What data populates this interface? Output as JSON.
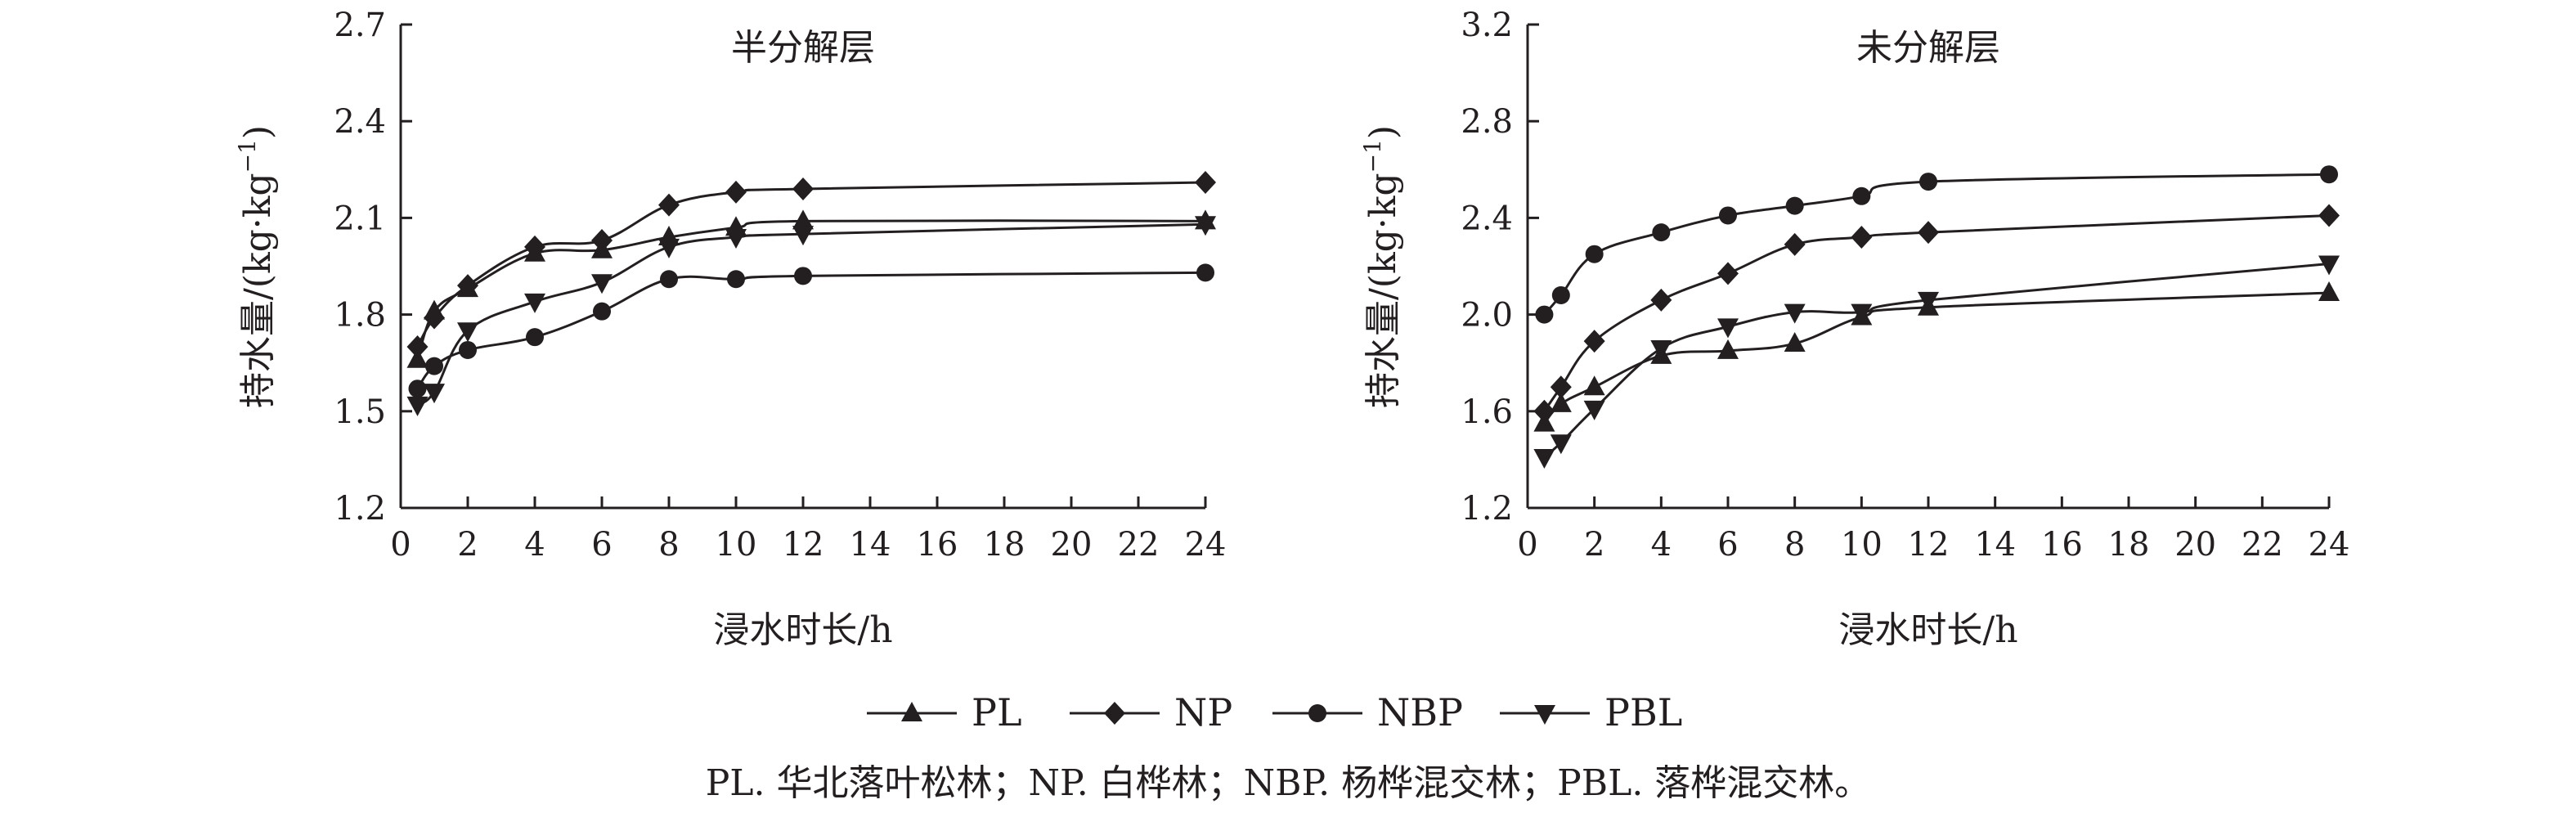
{
  "charts": [
    {
      "title": "半分解层",
      "xlabel": "浸水时长/h",
      "ylabel_main": "持水量/(kg·kg",
      "ylabel_sup": "−1",
      "ylabel_end": ")",
      "ylim": [
        1.2,
        2.7
      ],
      "yticks": [
        "1.2",
        "1.5",
        "1.8",
        "2.1",
        "2.4",
        "2.7"
      ],
      "xticks": [
        "0",
        "2",
        "4",
        "6",
        "8",
        "10",
        "12",
        "14",
        "16",
        "18",
        "20",
        "22",
        "24"
      ]
    },
    {
      "title": "未分解层",
      "xlabel": "浸水时长/h",
      "ylabel_main": "持水量/(kg·kg",
      "ylabel_sup": "−1",
      "ylabel_end": ")",
      "ylim": [
        1.2,
        3.2
      ],
      "yticks": [
        "1.2",
        "1.6",
        "2.0",
        "2.4",
        "2.8",
        "3.2"
      ],
      "xticks": [
        "0",
        "2",
        "4",
        "6",
        "8",
        "10",
        "12",
        "14",
        "16",
        "18",
        "20",
        "22",
        "24"
      ]
    }
  ],
  "legend": [
    {
      "label": "PL",
      "marker": "triangle-up"
    },
    {
      "label": "NP",
      "marker": "diamond"
    },
    {
      "label": "NBP",
      "marker": "circle"
    },
    {
      "label": "PBL",
      "marker": "triangle-down"
    }
  ],
  "caption": "PL. 华北落叶松林；NP. 白桦林；NBP. 杨桦混交林；PBL. 落桦混交林。",
  "colors": {
    "ink": "#231f20"
  },
  "chart_data": [
    {
      "type": "line",
      "title": "半分解层",
      "xlabel": "浸水时长/h",
      "ylabel": "持水量/(kg·kg−1)",
      "xlim": [
        0,
        24
      ],
      "ylim": [
        1.2,
        2.7
      ],
      "x": [
        0.5,
        1,
        2,
        4,
        6,
        8,
        10,
        12,
        24
      ],
      "series": [
        {
          "name": "PL",
          "values": [
            1.66,
            1.81,
            1.88,
            1.99,
            2.0,
            2.04,
            2.07,
            2.09,
            2.09
          ]
        },
        {
          "name": "NP",
          "values": [
            1.7,
            1.79,
            1.89,
            2.01,
            2.03,
            2.14,
            2.18,
            2.19,
            2.21
          ]
        },
        {
          "name": "NBP",
          "values": [
            1.57,
            1.64,
            1.69,
            1.73,
            1.81,
            1.91,
            1.91,
            1.92,
            1.93
          ]
        },
        {
          "name": "PBL",
          "values": [
            1.52,
            1.56,
            1.75,
            1.84,
            1.9,
            2.01,
            2.04,
            2.05,
            2.08
          ]
        }
      ]
    },
    {
      "type": "line",
      "title": "未分解层",
      "xlabel": "浸水时长/h",
      "ylabel": "持水量/(kg·kg−1)",
      "xlim": [
        0,
        24
      ],
      "ylim": [
        1.2,
        3.2
      ],
      "x": [
        0.5,
        1,
        2,
        4,
        6,
        8,
        10,
        12,
        24
      ],
      "series": [
        {
          "name": "PL",
          "values": [
            1.55,
            1.63,
            1.7,
            1.83,
            1.85,
            1.88,
            1.99,
            2.03,
            2.09
          ]
        },
        {
          "name": "NP",
          "values": [
            1.6,
            1.7,
            1.89,
            2.06,
            2.17,
            2.29,
            2.32,
            2.34,
            2.41
          ]
        },
        {
          "name": "NBP",
          "values": [
            2.0,
            2.08,
            2.25,
            2.34,
            2.41,
            2.45,
            2.49,
            2.55,
            2.58
          ]
        },
        {
          "name": "PBL",
          "values": [
            1.41,
            1.47,
            1.61,
            1.86,
            1.95,
            2.01,
            2.01,
            2.06,
            2.21
          ]
        }
      ]
    }
  ]
}
